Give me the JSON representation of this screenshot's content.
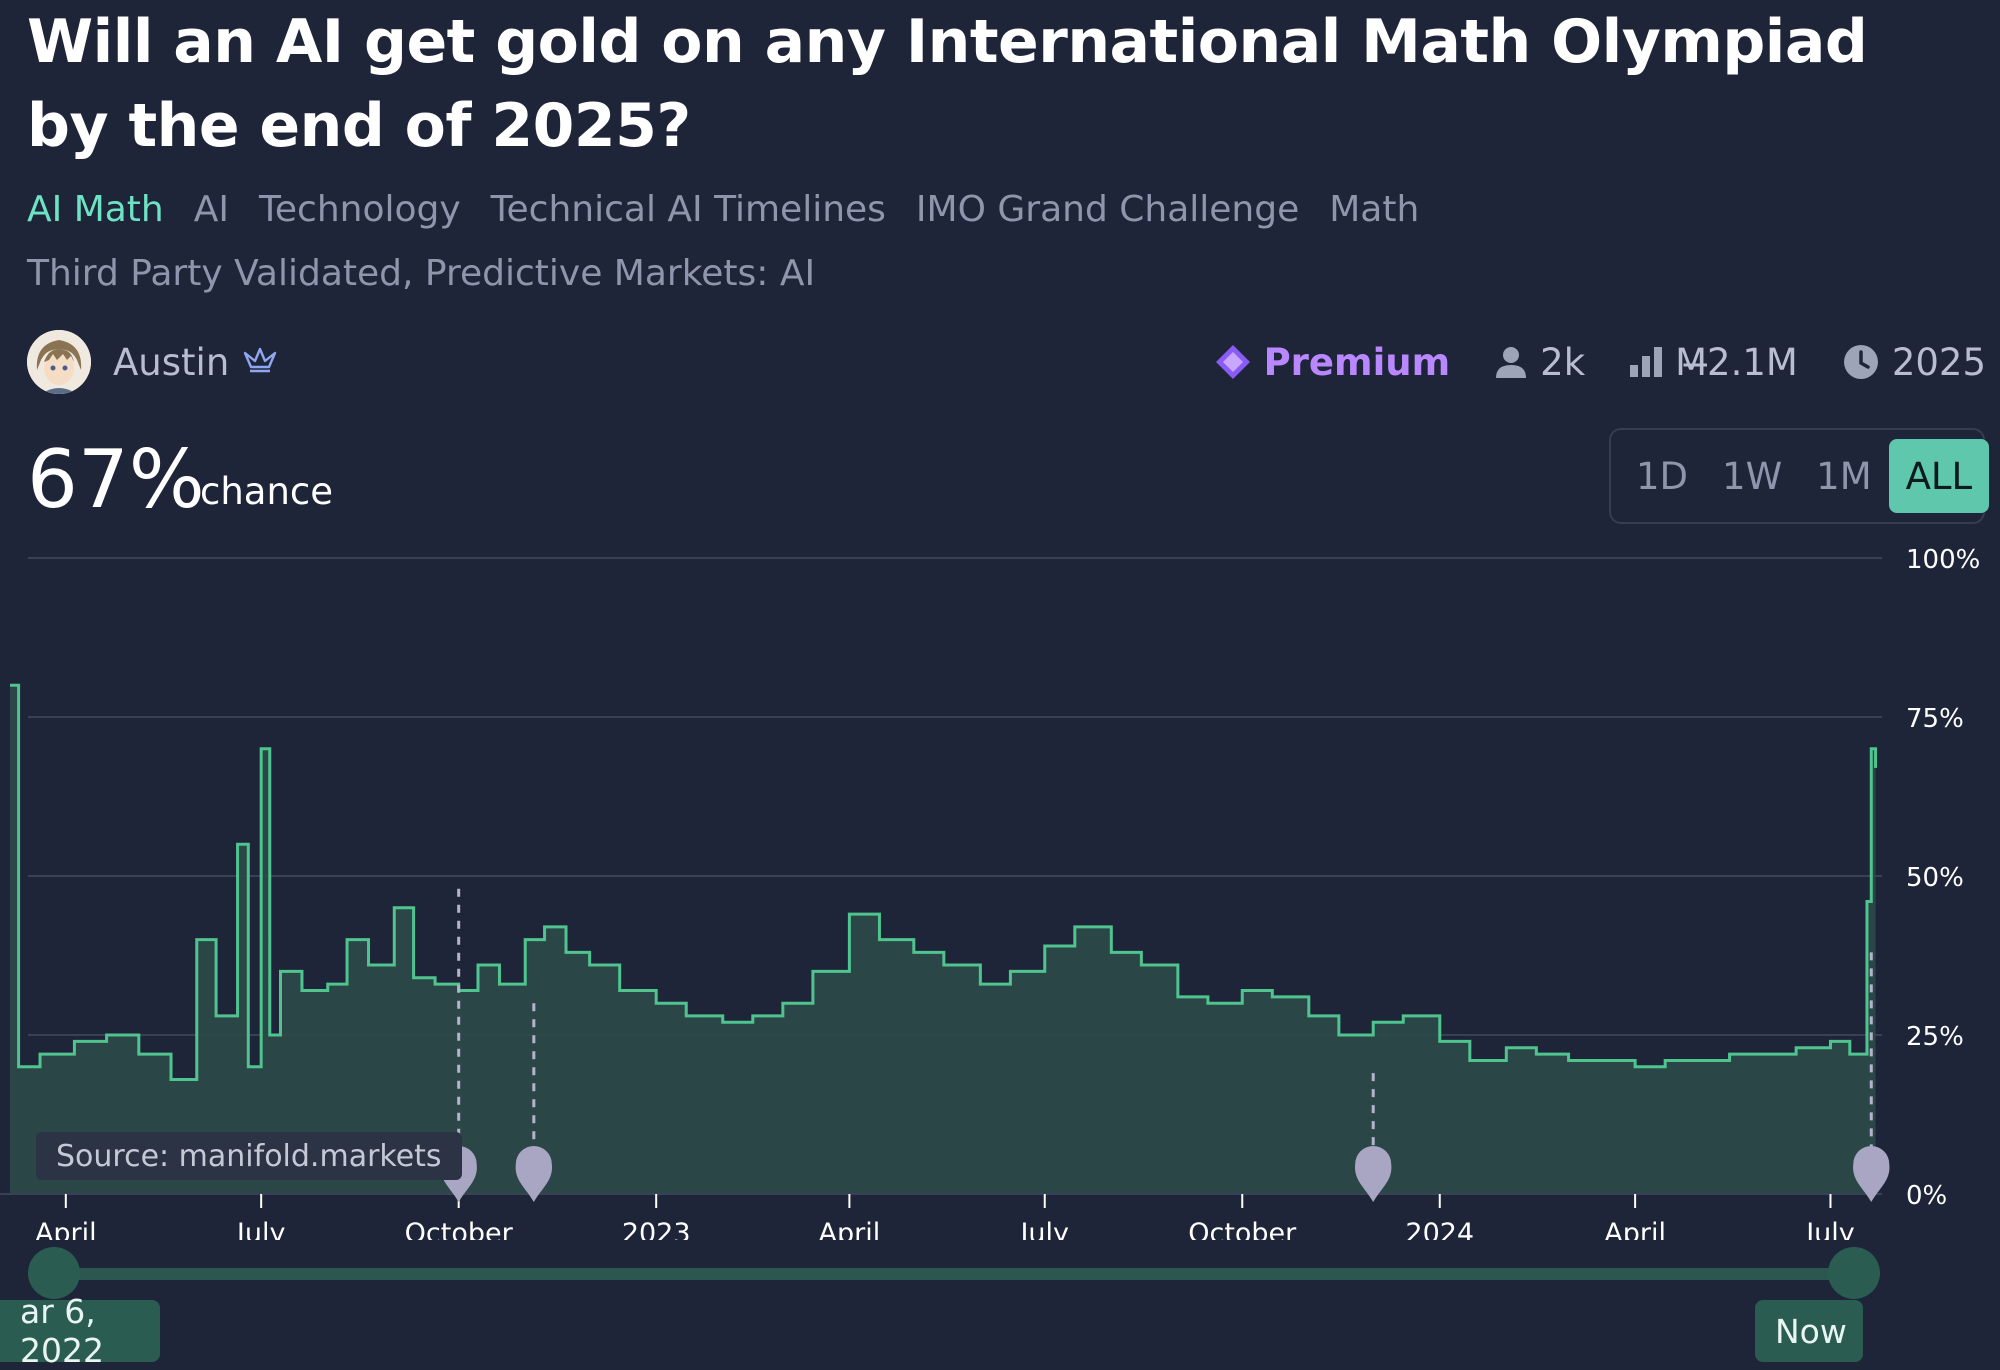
{
  "question": "Will an AI get gold on any International Math Olympiad by the end of 2025?",
  "tags": [
    "AI Math",
    "AI",
    "Technology",
    "Technical AI Timelines",
    "IMO Grand Challenge",
    "Math"
  ],
  "tags_line2": "Third Party Validated, Predictive Markets: AI",
  "author": {
    "name": "Austin"
  },
  "stats": {
    "premium": "Premium",
    "traders": "2k",
    "volume": "M̶2.1M",
    "close_year": "2025"
  },
  "probability": "67%",
  "probability_label": "chance",
  "time_range": {
    "options": [
      "1D",
      "1W",
      "1M",
      "ALL"
    ],
    "selected": "ALL"
  },
  "source_label": "Source: manifold.markets",
  "slider": {
    "start_label": "ar 6, 2022",
    "end_label": "Now"
  },
  "colors": {
    "background": "#1f2538",
    "accent": "#6ee3c4",
    "line": "#4fc48f",
    "area": "#2c4a48",
    "premium": "#b987ff"
  },
  "chart_data": {
    "type": "area",
    "x_ticks": [
      "April",
      "July",
      "October",
      "2023",
      "April",
      "July",
      "October",
      "2024",
      "April",
      "July"
    ],
    "y_ticks": [
      "100%",
      "75%",
      "50%",
      "25%",
      "0%"
    ],
    "ylim": [
      0,
      100
    ],
    "grid": true,
    "series": [
      {
        "points": [
          [
            "2022-03-06",
            80
          ],
          [
            "2022-03-10",
            20
          ],
          [
            "2022-03-20",
            22
          ],
          [
            "2022-04-05",
            24
          ],
          [
            "2022-04-20",
            25
          ],
          [
            "2022-05-05",
            22
          ],
          [
            "2022-05-20",
            18
          ],
          [
            "2022-06-01",
            40
          ],
          [
            "2022-06-10",
            28
          ],
          [
            "2022-06-20",
            55
          ],
          [
            "2022-06-25",
            20
          ],
          [
            "2022-07-01",
            70
          ],
          [
            "2022-07-05",
            25
          ],
          [
            "2022-07-10",
            35
          ],
          [
            "2022-07-20",
            32
          ],
          [
            "2022-08-01",
            33
          ],
          [
            "2022-08-10",
            40
          ],
          [
            "2022-08-20",
            36
          ],
          [
            "2022-09-01",
            45
          ],
          [
            "2022-09-10",
            34
          ],
          [
            "2022-09-20",
            33
          ],
          [
            "2022-10-01",
            32
          ],
          [
            "2022-10-10",
            36
          ],
          [
            "2022-10-20",
            33
          ],
          [
            "2022-11-01",
            40
          ],
          [
            "2022-11-10",
            42
          ],
          [
            "2022-11-20",
            38
          ],
          [
            "2022-12-01",
            36
          ],
          [
            "2022-12-15",
            32
          ],
          [
            "2023-01-01",
            30
          ],
          [
            "2023-01-15",
            28
          ],
          [
            "2023-02-01",
            27
          ],
          [
            "2023-02-15",
            28
          ],
          [
            "2023-03-01",
            30
          ],
          [
            "2023-03-15",
            35
          ],
          [
            "2023-04-01",
            44
          ],
          [
            "2023-04-15",
            40
          ],
          [
            "2023-05-01",
            38
          ],
          [
            "2023-05-15",
            36
          ],
          [
            "2023-06-01",
            33
          ],
          [
            "2023-06-15",
            35
          ],
          [
            "2023-07-01",
            39
          ],
          [
            "2023-07-15",
            42
          ],
          [
            "2023-08-01",
            38
          ],
          [
            "2023-08-15",
            36
          ],
          [
            "2023-09-01",
            31
          ],
          [
            "2023-09-15",
            30
          ],
          [
            "2023-10-01",
            32
          ],
          [
            "2023-10-15",
            31
          ],
          [
            "2023-11-01",
            28
          ],
          [
            "2023-11-15",
            25
          ],
          [
            "2023-12-01",
            27
          ],
          [
            "2023-12-15",
            28
          ],
          [
            "2024-01-01",
            24
          ],
          [
            "2024-01-15",
            21
          ],
          [
            "2024-02-01",
            23
          ],
          [
            "2024-02-15",
            22
          ],
          [
            "2024-03-01",
            21
          ],
          [
            "2024-04-01",
            20
          ],
          [
            "2024-04-15",
            21
          ],
          [
            "2024-05-01",
            21
          ],
          [
            "2024-05-15",
            22
          ],
          [
            "2024-06-01",
            22
          ],
          [
            "2024-06-15",
            23
          ],
          [
            "2024-07-01",
            24
          ],
          [
            "2024-07-10",
            22
          ],
          [
            "2024-07-18",
            46
          ],
          [
            "2024-07-20",
            70
          ],
          [
            "2024-07-22",
            67
          ]
        ]
      }
    ],
    "markers": [
      "2022-10-01",
      "2022-11-05",
      "2023-12-01",
      "2024-07-20"
    ]
  }
}
